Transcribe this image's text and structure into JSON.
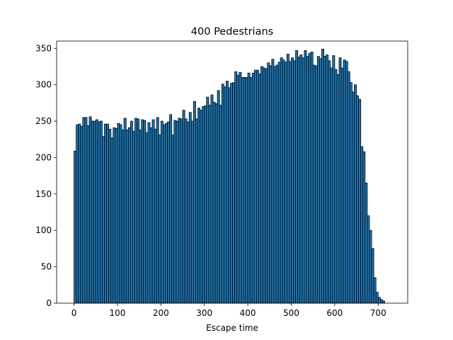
{
  "chart_data": {
    "type": "bar",
    "title": "400 Pedestrians",
    "xlabel": "Escape time",
    "ylabel": "",
    "xlim": [
      -40,
      768
    ],
    "ylim": [
      0,
      360
    ],
    "xticks": [
      0,
      100,
      200,
      300,
      400,
      500,
      600,
      700
    ],
    "yticks": [
      0,
      50,
      100,
      150,
      200,
      250,
      300,
      350
    ],
    "bin_start": 0,
    "bin_width": 5,
    "bar_color": "#1f77b4",
    "edge_color": "#000000",
    "grid": false,
    "legend": "none",
    "values": [
      209,
      245,
      246,
      243,
      255,
      255,
      244,
      256,
      250,
      250,
      252,
      249,
      250,
      229,
      246,
      246,
      239,
      227,
      241,
      240,
      247,
      245,
      238,
      254,
      238,
      241,
      250,
      236,
      254,
      253,
      238,
      252,
      251,
      234,
      248,
      241,
      252,
      239,
      255,
      231,
      250,
      245,
      247,
      249,
      259,
      231,
      251,
      250,
      254,
      253,
      265,
      253,
      249,
      262,
      250,
      277,
      253,
      268,
      265,
      270,
      271,
      283,
      272,
      286,
      276,
      274,
      292,
      272,
      301,
      297,
      305,
      296,
      302,
      303,
      318,
      313,
      317,
      310,
      310,
      310,
      316,
      310,
      316,
      320,
      320,
      315,
      325,
      323,
      322,
      330,
      326,
      335,
      325,
      327,
      331,
      337,
      334,
      331,
      342,
      332,
      337,
      333,
      347,
      338,
      341,
      337,
      347,
      339,
      343,
      345,
      327,
      326,
      339,
      336,
      349,
      339,
      341,
      333,
      323,
      340,
      321,
      314,
      337,
      323,
      334,
      332,
      318,
      303,
      290,
      300,
      285,
      280,
      215,
      208,
      165,
      120,
      100,
      75,
      35,
      15,
      8,
      5,
      3
    ]
  }
}
